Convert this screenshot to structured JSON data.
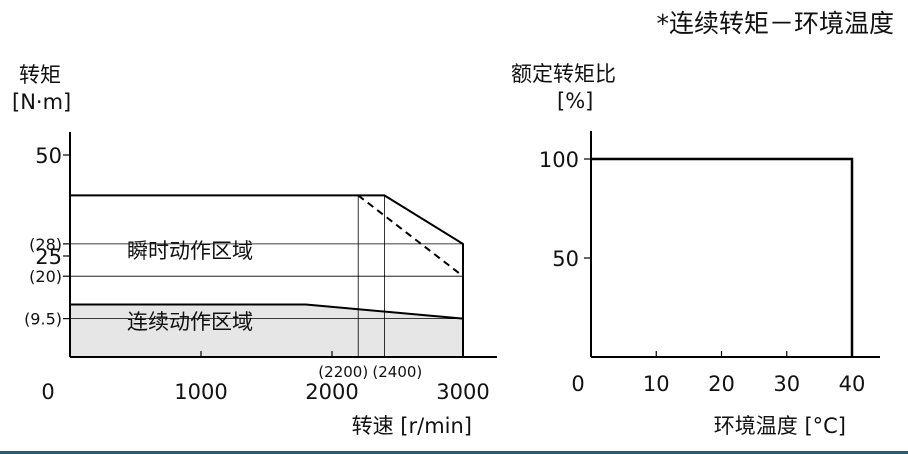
{
  "page_title": "*连续转矩－环境温度",
  "colors": {
    "continuous_fill": "#e6e6e6",
    "line": "#000000",
    "footer_rule": "#2b5d6e"
  },
  "chart_data": [
    {
      "type": "area",
      "ylabel": "转矩",
      "yunit": "[N·m]",
      "xlabel": "转速 [r/min]",
      "xlim": [
        0,
        3000
      ],
      "ylim": [
        0,
        50
      ],
      "yticks": [
        {
          "value": 50,
          "label": "50"
        },
        {
          "value": 28,
          "label": "(28)"
        },
        {
          "value": 25,
          "label": "25"
        },
        {
          "value": 20,
          "label": "(20)"
        },
        {
          "value": 9.5,
          "label": "(9.5)"
        }
      ],
      "xticks": [
        {
          "value": 0,
          "label": "0"
        },
        {
          "value": 1000,
          "label": "1000"
        },
        {
          "value": 2000,
          "label": "2000"
        },
        {
          "value": 3000,
          "label": "3000"
        }
      ],
      "xmarks": [
        {
          "value": 2200,
          "label": "(2200)"
        },
        {
          "value": 2400,
          "label": "(2400)"
        }
      ],
      "regions": [
        {
          "name": "瞬时动作区域",
          "points": [
            [
              0,
              40
            ],
            [
              2400,
              40
            ],
            [
              3000,
              28
            ],
            [
              3000,
              0
            ]
          ],
          "dashed_alternative": [
            [
              2200,
              40
            ],
            [
              3000,
              20
            ]
          ],
          "label_at": [
            400,
            25
          ]
        },
        {
          "name": "连续动作区域",
          "points": [
            [
              0,
              13
            ],
            [
              1800,
              13
            ],
            [
              3000,
              9.5
            ],
            [
              3000,
              0
            ]
          ],
          "label_at": [
            400,
            12
          ]
        }
      ]
    },
    {
      "type": "line",
      "ylabel": "额定转矩比",
      "yunit": "[%]",
      "xlabel": "环境温度 [°C]",
      "xlim": [
        0,
        40
      ],
      "ylim": [
        0,
        100
      ],
      "xticks": [
        {
          "value": 0,
          "label": "0"
        },
        {
          "value": 10,
          "label": "10"
        },
        {
          "value": 20,
          "label": "20"
        },
        {
          "value": 30,
          "label": "30"
        },
        {
          "value": 40,
          "label": "40"
        }
      ],
      "yticks": [
        {
          "value": 100,
          "label": "100"
        },
        {
          "value": 50,
          "label": "50"
        }
      ],
      "series": [
        {
          "x": [
            0,
            40,
            40
          ],
          "y": [
            100,
            100,
            0
          ]
        }
      ]
    }
  ]
}
